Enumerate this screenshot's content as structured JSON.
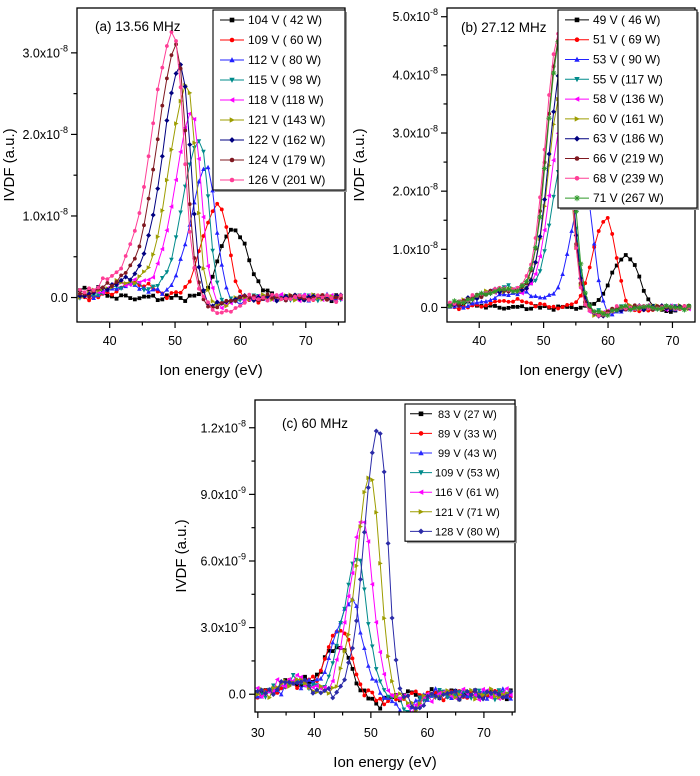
{
  "figure": {
    "background": "#ffffff",
    "description": "Ion velocity distribution functions (IVDF) vs ion energy at three RF frequencies"
  },
  "chart_data": [
    {
      "id": "a",
      "type": "line",
      "title": "(a) 13.56 MHz",
      "xlabel": "Ion energy (eV)",
      "ylabel": "IVDF (a.u.)",
      "xlim": [
        35,
        76
      ],
      "ylim": [
        -0.3,
        3.55
      ],
      "y_unit": "x10^-8",
      "xticks": [
        40,
        50,
        60,
        70
      ],
      "xminor": [
        45,
        55,
        65,
        75
      ],
      "yticks": [
        {
          "v": 0.0,
          "label": "0.0"
        },
        {
          "v": 1.0,
          "label": "1.0x10^-8"
        },
        {
          "v": 2.0,
          "label": "2.0x10^-8"
        },
        {
          "v": 3.0,
          "label": "3.0x10^-8"
        }
      ],
      "yminor": [
        0.5,
        1.5,
        2.5
      ],
      "legend_position": "top-right-inside",
      "series": [
        {
          "label": "104 V ( 42 W)",
          "color": "#000000",
          "marker": "square",
          "peak": {
            "center_eV": 58.8,
            "height": 0.85,
            "sigma_left": 2.0,
            "sigma_right": 2.3
          },
          "hump": {
            "c": 36.5,
            "h": 0.12,
            "s": 2.0
          },
          "noise": 0.05
        },
        {
          "label": "109 V ( 60 W)",
          "color": "#FF0000",
          "marker": "circle",
          "peak": {
            "center_eV": 56.6,
            "height": 1.15,
            "sigma_left": 2.4,
            "sigma_right": 1.6
          },
          "hump": {
            "c": 44.0,
            "h": 0.18,
            "s": 2.5
          },
          "dip": {
            "c": 60.5,
            "h": 0.07,
            "s": 1.5
          },
          "noise": 0.05
        },
        {
          "label": "112 V ( 80 W)",
          "color": "#2222FF",
          "marker": "triangle-up",
          "peak": {
            "center_eV": 54.9,
            "height": 1.6,
            "sigma_left": 2.5,
            "sigma_right": 1.4
          },
          "hump": {
            "c": 43.0,
            "h": 0.15,
            "s": 3.0
          },
          "dip": {
            "c": 58.5,
            "h": 0.08,
            "s": 1.5
          },
          "noise": 0.05
        },
        {
          "label": "115 V ( 98 W)",
          "color": "#008B8B",
          "marker": "triangle-down",
          "peak": {
            "center_eV": 53.8,
            "height": 1.95,
            "sigma_left": 2.6,
            "sigma_right": 1.3
          },
          "hump": {
            "c": 43.0,
            "h": 0.16,
            "s": 3.0
          },
          "dip": {
            "c": 57.5,
            "h": 0.08,
            "s": 1.5
          },
          "noise": 0.05
        },
        {
          "label": "118 V (118 W)",
          "color": "#FF00FF",
          "marker": "triangle-left",
          "peak": {
            "center_eV": 52.7,
            "height": 2.25,
            "sigma_left": 2.7,
            "sigma_right": 1.3
          },
          "hump": {
            "c": 43.0,
            "h": 0.18,
            "s": 3.5
          },
          "dip": {
            "c": 57.0,
            "h": 0.1,
            "s": 1.5
          },
          "noise": 0.05
        },
        {
          "label": "121 V (143 W)",
          "color": "#9D9D00",
          "marker": "triangle-right",
          "peak": {
            "center_eV": 51.9,
            "height": 2.6,
            "sigma_left": 2.8,
            "sigma_right": 1.3
          },
          "hump": {
            "c": 42.5,
            "h": 0.18,
            "s": 3.5
          },
          "dip": {
            "c": 56.5,
            "h": 0.1,
            "s": 1.5
          },
          "noise": 0.05
        },
        {
          "label": "122 V (162 W)",
          "color": "#000080",
          "marker": "diamond",
          "peak": {
            "center_eV": 51.0,
            "height": 2.85,
            "sigma_left": 2.9,
            "sigma_right": 1.35
          },
          "hump": {
            "c": 42.5,
            "h": 0.18,
            "s": 3.5
          },
          "dip": {
            "c": 56.0,
            "h": 0.1,
            "s": 1.5
          },
          "noise": 0.05
        },
        {
          "label": "124 V (179 W)",
          "color": "#7F1820",
          "marker": "circle",
          "peak": {
            "center_eV": 50.3,
            "height": 3.05,
            "sigma_left": 3.0,
            "sigma_right": 1.4
          },
          "hump": {
            "c": 42.5,
            "h": 0.2,
            "s": 3.5
          },
          "dip": {
            "c": 56.0,
            "h": 0.12,
            "s": 1.5
          },
          "noise": 0.05
        },
        {
          "label": "126 V (201 W)",
          "color": "#FF3E96",
          "marker": "circle",
          "peak": {
            "center_eV": 49.8,
            "height": 3.2,
            "sigma_left": 3.2,
            "sigma_right": 1.5
          },
          "hump": {
            "c": 42.5,
            "h": 0.26,
            "s": 4.0
          },
          "dip": {
            "c": 57.5,
            "h": 0.2,
            "s": 1.8
          },
          "noise": 0.06
        }
      ]
    },
    {
      "id": "b",
      "type": "line",
      "title": "(b) 27.12 MHz",
      "xlabel": "Ion energy (eV)",
      "ylabel": "IVDF (a.u.)",
      "xlim": [
        35,
        73.5
      ],
      "ylim": [
        -0.25,
        5.15
      ],
      "y_unit": "x10^-8",
      "xticks": [
        40,
        50,
        60,
        70
      ],
      "xminor": [
        45,
        55,
        65
      ],
      "yticks": [
        {
          "v": 0.0,
          "label": "0.0"
        },
        {
          "v": 1.0,
          "label": "1.0x10^-8"
        },
        {
          "v": 2.0,
          "label": "2.0x10^-8"
        },
        {
          "v": 3.0,
          "label": "3.0x10^-8"
        },
        {
          "v": 4.0,
          "label": "4.0x10^-8"
        },
        {
          "v": 5.0,
          "label": "5.0x10^-8"
        }
      ],
      "yminor": [
        0.5,
        1.5,
        2.5,
        3.5,
        4.5
      ],
      "legend_position": "top-right-inside",
      "series": [
        {
          "label": "49 V ( 46 W)",
          "color": "#000000",
          "marker": "square",
          "peak": {
            "center_eV": 62.8,
            "height": 0.9,
            "sigma_left": 2.2,
            "sigma_right": 2.0
          },
          "hump": {
            "c": 38.0,
            "h": 0.06,
            "s": 2.0
          },
          "dip": {
            "c": 68.0,
            "h": 0.08,
            "s": 2.0
          },
          "noise": 0.045
        },
        {
          "label": "51 V ( 69 W)",
          "color": "#FF0000",
          "marker": "circle",
          "peak": {
            "center_eV": 59.7,
            "height": 1.55,
            "sigma_left": 2.0,
            "sigma_right": 1.5
          },
          "hump": {
            "c": 45.0,
            "h": 0.12,
            "s": 3.0
          },
          "dip": {
            "c": 64.5,
            "h": 0.08,
            "s": 1.5
          },
          "noise": 0.045
        },
        {
          "label": "53 V ( 90 W)",
          "color": "#2222FF",
          "marker": "triangle-up",
          "peak": {
            "center_eV": 56.4,
            "height": 2.05,
            "sigma_left": 2.1,
            "sigma_right": 1.3
          },
          "hump": {
            "c": 46.0,
            "h": 0.25,
            "s": 4.0
          },
          "dip": {
            "c": 60.5,
            "h": 0.12,
            "s": 1.5
          },
          "noise": 0.045
        },
        {
          "label": "55 V (117 W)",
          "color": "#008B8B",
          "marker": "triangle-down",
          "peak": {
            "center_eV": 53.4,
            "height": 2.6,
            "sigma_left": 2.1,
            "sigma_right": 1.4
          },
          "hump": {
            "c": 45.0,
            "h": 0.35,
            "s": 4.5
          },
          "dip": {
            "c": 58.5,
            "h": 0.1,
            "s": 1.5
          },
          "noise": 0.05
        },
        {
          "label": "58 V (136 W)",
          "color": "#FF00FF",
          "marker": "triangle-left",
          "peak": {
            "center_eV": 53.0,
            "height": 3.1,
            "sigma_left": 2.1,
            "sigma_right": 1.4
          },
          "hump": {
            "c": 44.0,
            "h": 0.3,
            "s": 4.5
          },
          "dip": {
            "c": 58.5,
            "h": 0.12,
            "s": 1.5
          },
          "noise": 0.05
        },
        {
          "label": "60 V (161 W)",
          "color": "#9D9D00",
          "marker": "triangle-right",
          "peak": {
            "center_eV": 52.8,
            "height": 3.65,
            "sigma_left": 2.1,
            "sigma_right": 1.4
          },
          "hump": {
            "c": 44.0,
            "h": 0.3,
            "s": 4.5
          },
          "dip": {
            "c": 58.5,
            "h": 0.12,
            "s": 1.5
          },
          "noise": 0.05
        },
        {
          "label": "63 V (186 W)",
          "color": "#000080",
          "marker": "diamond",
          "peak": {
            "center_eV": 52.9,
            "height": 4.1,
            "sigma_left": 2.1,
            "sigma_right": 1.4
          },
          "hump": {
            "c": 44.0,
            "h": 0.3,
            "s": 4.5
          },
          "dip": {
            "c": 59.0,
            "h": 0.14,
            "s": 1.5
          },
          "noise": 0.05
        },
        {
          "label": "66 V (219 W)",
          "color": "#7F1820",
          "marker": "circle",
          "peak": {
            "center_eV": 52.6,
            "height": 4.62,
            "sigma_left": 2.1,
            "sigma_right": 1.45
          },
          "hump": {
            "c": 44.0,
            "h": 0.3,
            "s": 4.5
          },
          "dip": {
            "c": 58.5,
            "h": 0.12,
            "s": 1.5
          },
          "noise": 0.05
        },
        {
          "label": "68 V (239 W)",
          "color": "#FF3E96",
          "marker": "circle",
          "peak": {
            "center_eV": 52.5,
            "height": 4.72,
            "sigma_left": 2.15,
            "sigma_right": 1.45
          },
          "hump": {
            "c": 44.0,
            "h": 0.32,
            "s": 4.5
          },
          "dip": {
            "c": 58.5,
            "h": 0.14,
            "s": 1.5
          },
          "noise": 0.05
        },
        {
          "label": "71 V (267 W)",
          "color": "#2E9928",
          "marker": "star",
          "peak": {
            "center_eV": 52.8,
            "height": 4.65,
            "sigma_left": 2.2,
            "sigma_right": 1.55
          },
          "hump": {
            "c": 44.0,
            "h": 0.3,
            "s": 4.5
          },
          "dip": {
            "c": 59.0,
            "h": 0.12,
            "s": 1.5
          },
          "noise": 0.05
        }
      ]
    },
    {
      "id": "c",
      "type": "line",
      "title": "(c) 60 MHz",
      "xlabel": "Ion energy (eV)",
      "ylabel": "IVDF (a.u.)",
      "xlim": [
        29.5,
        75.5
      ],
      "ylim": [
        -0.8,
        13.25
      ],
      "y_unit": "x10^-9",
      "xticks": [
        30,
        40,
        50,
        60,
        70
      ],
      "xminor": [
        35,
        45,
        55,
        65,
        75
      ],
      "yticks": [
        {
          "v": 0.0,
          "label": "0.0"
        },
        {
          "v": 3.0,
          "label": "3.0x10^-9"
        },
        {
          "v": 6.0,
          "label": "6.0x10^-9"
        },
        {
          "v": 9.0,
          "label": "9.0x10^-9"
        },
        {
          "v": 12.0,
          "label": "1.2x10^-8"
        }
      ],
      "yminor": [
        1.5,
        4.5,
        7.5,
        10.5
      ],
      "legend_position": "top-right-inside",
      "series": [
        {
          "label": " 83 V (27 W)",
          "color": "#000000",
          "marker": "square",
          "peak": {
            "center_eV": 44.2,
            "height": 2.2,
            "sigma_left": 2.6,
            "sigma_right": 2.2
          },
          "hump": {
            "c": 36.0,
            "h": 0.5,
            "s": 2.5
          },
          "dip": {
            "c": 51.0,
            "h": 0.4,
            "s": 2.0
          },
          "noise": 0.3
        },
        {
          "label": " 89 V (33 W)",
          "color": "#FF0000",
          "marker": "circle",
          "peak": {
            "center_eV": 44.7,
            "height": 3.0,
            "sigma_left": 2.4,
            "sigma_right": 1.8
          },
          "hump": {
            "c": 37.0,
            "h": 0.5,
            "s": 2.5
          },
          "dip": {
            "c": 53.0,
            "h": 0.3,
            "s": 2.0
          },
          "noise": 0.3
        },
        {
          "label": " 99 V (43 W)",
          "color": "#2A2AFF",
          "marker": "triangle-up",
          "peak": {
            "center_eV": 46.5,
            "height": 4.2,
            "sigma_left": 2.8,
            "sigma_right": 2.0
          },
          "hump": {
            "c": 37.0,
            "h": 0.5,
            "s": 2.5
          },
          "dip": {
            "c": 56.0,
            "h": 0.9,
            "s": 1.6
          },
          "noise": 0.3
        },
        {
          "label": "109 V (53 W)",
          "color": "#008B8B",
          "marker": "triangle-down",
          "peak": {
            "center_eV": 47.6,
            "height": 6.1,
            "sigma_left": 2.5,
            "sigma_right": 1.8
          },
          "hump": {
            "c": 36.5,
            "h": 0.6,
            "s": 2.5
          },
          "dip": {
            "c": 57.0,
            "h": 0.8,
            "s": 1.5
          },
          "noise": 0.3
        },
        {
          "label": "116 V (61 W)",
          "color": "#FF00FF",
          "marker": "triangle-left",
          "peak": {
            "center_eV": 48.7,
            "height": 7.8,
            "sigma_left": 2.5,
            "sigma_right": 1.7
          },
          "hump": {
            "c": 36.5,
            "h": 0.7,
            "s": 2.5
          },
          "dip": {
            "c": 57.5,
            "h": 0.6,
            "s": 1.5
          },
          "noise": 0.35
        },
        {
          "label": "121 V (71 W)",
          "color": "#9D9D00",
          "marker": "triangle-right",
          "peak": {
            "center_eV": 50.0,
            "height": 9.9,
            "sigma_left": 2.5,
            "sigma_right": 1.6
          },
          "hump": {
            "c": 36.5,
            "h": 0.6,
            "s": 2.5
          },
          "dip": {
            "c": 57.5,
            "h": 0.5,
            "s": 1.5
          },
          "noise": 0.3
        },
        {
          "label": "128 V (80 W)",
          "color": "#2B2BA8",
          "marker": "diamond",
          "peak": {
            "center_eV": 51.4,
            "height": 12.1,
            "sigma_left": 2.5,
            "sigma_right": 1.5
          },
          "hump": {
            "c": 36.5,
            "h": 0.6,
            "s": 2.5
          },
          "dip": {
            "c": 58.0,
            "h": 0.6,
            "s": 1.5
          },
          "noise": 0.3
        }
      ]
    }
  ]
}
